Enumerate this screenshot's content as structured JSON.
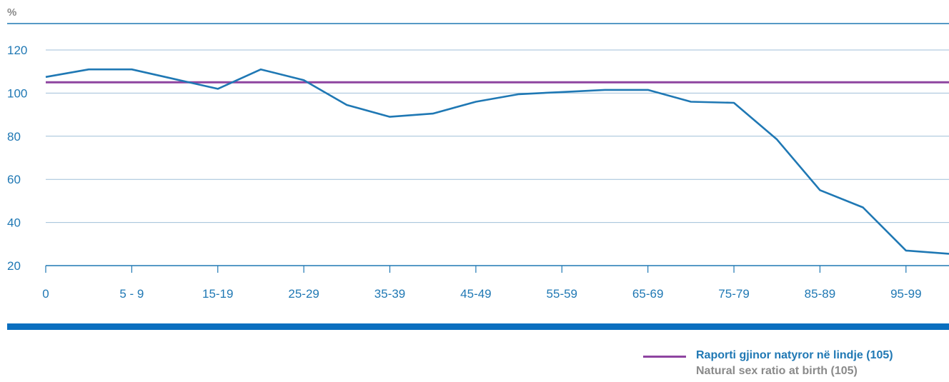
{
  "chart_data": {
    "type": "line",
    "ylabel": "%",
    "ylim": [
      20,
      120
    ],
    "yticks": [
      20,
      40,
      60,
      80,
      100,
      120
    ],
    "xtick_labels": [
      "0",
      "5 - 9",
      "15-19",
      "25-29",
      "35-39",
      "45-49",
      "55-59",
      "65-69",
      "75-79",
      "85-89",
      "95-99"
    ],
    "grid": true,
    "legend_position": "bottom-right",
    "colors": {
      "series": "#1f78b4",
      "reference": "#8e44a0",
      "axis": "#1f78b4",
      "grid": "#9fbfd8",
      "band": "#0a6fbf"
    },
    "series": [
      {
        "values": [
          107.5,
          111,
          111,
          106.5,
          102,
          111,
          106,
          94.5,
          89,
          90.5,
          96,
          99.5,
          100.5,
          101.5,
          101.5,
          96,
          95.5,
          78.5,
          55,
          47,
          27,
          25.5
        ]
      }
    ],
    "reference_line": {
      "value": 105
    },
    "legend": [
      {
        "label": "Raporti gjinor natyror në lindje (105)",
        "sublabel": "Natural sex ratio at birth (105)"
      }
    ]
  }
}
